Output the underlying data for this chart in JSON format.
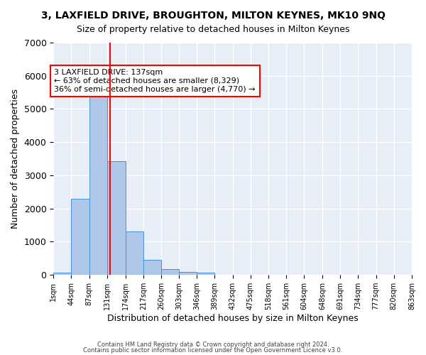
{
  "title1": "3, LAXFIELD DRIVE, BROUGHTON, MILTON KEYNES, MK10 9NQ",
  "title2": "Size of property relative to detached houses in Milton Keynes",
  "xlabel": "Distribution of detached houses by size in Milton Keynes",
  "ylabel": "Number of detached properties",
  "bar_color": "#aec6e8",
  "bar_edge_color": "#4a90d9",
  "background_color": "#e8eef8",
  "grid_color": "#ffffff",
  "red_line_x": 137,
  "annotation_title": "3 LAXFIELD DRIVE: 137sqm",
  "annotation_line1": "← 63% of detached houses are smaller (8,329)",
  "annotation_line2": "36% of semi-detached houses are larger (4,770) →",
  "bin_edges": [
    1,
    44,
    87,
    131,
    174,
    217,
    260,
    303,
    346,
    389,
    432,
    475,
    518,
    561,
    604,
    648,
    691,
    734,
    777,
    820,
    863
  ],
  "bin_labels": [
    "1sqm",
    "44sqm",
    "87sqm",
    "131sqm",
    "174sqm",
    "217sqm",
    "260sqm",
    "303sqm",
    "346sqm",
    "389sqm",
    "432sqm",
    "475sqm",
    "518sqm",
    "561sqm",
    "604sqm",
    "648sqm",
    "691sqm",
    "734sqm",
    "777sqm",
    "820sqm",
    "863sqm"
  ],
  "bar_heights": [
    75,
    2300,
    5450,
    3420,
    1310,
    460,
    170,
    80,
    75,
    0,
    0,
    0,
    0,
    0,
    0,
    0,
    0,
    0,
    0,
    0
  ],
  "ylim": [
    0,
    7000
  ],
  "yticks": [
    0,
    1000,
    2000,
    3000,
    4000,
    5000,
    6000,
    7000
  ],
  "footer1": "Contains HM Land Registry data © Crown copyright and database right 2024.",
  "footer2": "Contains public sector information licensed under the Open Government Licence v3.0."
}
